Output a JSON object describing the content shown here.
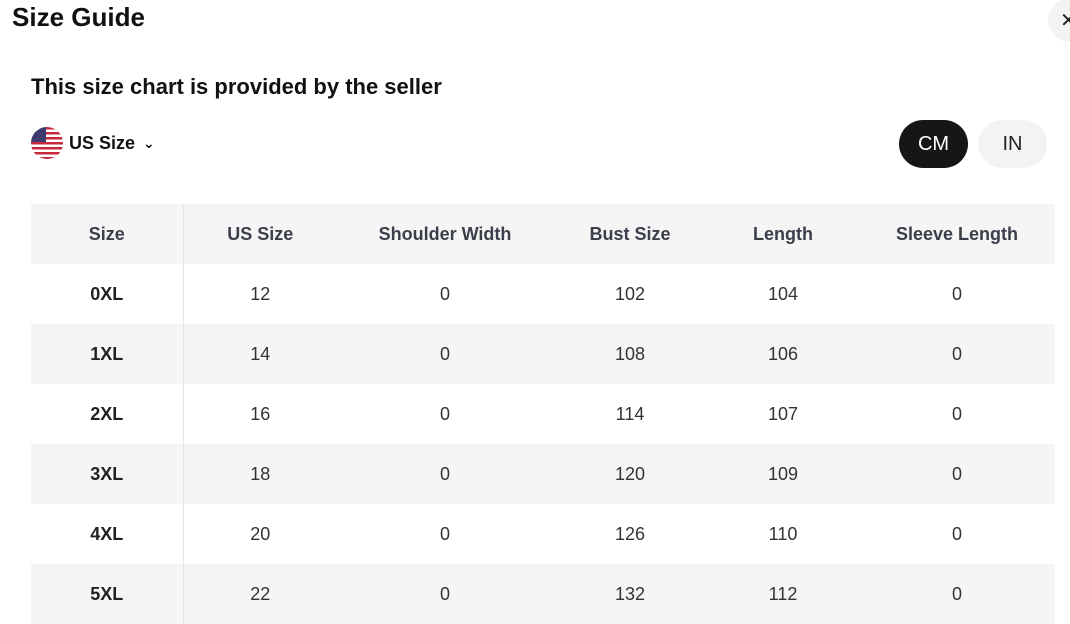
{
  "header": {
    "title": "Size Guide",
    "close_icon": "close-icon"
  },
  "subtitle": "This size chart is provided by the seller",
  "size_selector": {
    "flag_icon": "us-flag-icon",
    "label": "US Size",
    "chevron_icon": "chevron-down-icon"
  },
  "units": [
    {
      "label": "CM",
      "active": true
    },
    {
      "label": "IN",
      "active": false
    }
  ],
  "table": {
    "headers": [
      "Size",
      "US Size",
      "Shoulder Width",
      "Bust Size",
      "Length",
      "Sleeve Length"
    ],
    "rows": [
      [
        "0XL",
        "12",
        "0",
        "102",
        "104",
        "0"
      ],
      [
        "1XL",
        "14",
        "0",
        "108",
        "106",
        "0"
      ],
      [
        "2XL",
        "16",
        "0",
        "114",
        "107",
        "0"
      ],
      [
        "3XL",
        "18",
        "0",
        "120",
        "109",
        "0"
      ],
      [
        "4XL",
        "20",
        "0",
        "126",
        "110",
        "0"
      ],
      [
        "5XL",
        "22",
        "0",
        "132",
        "112",
        "0"
      ]
    ]
  }
}
